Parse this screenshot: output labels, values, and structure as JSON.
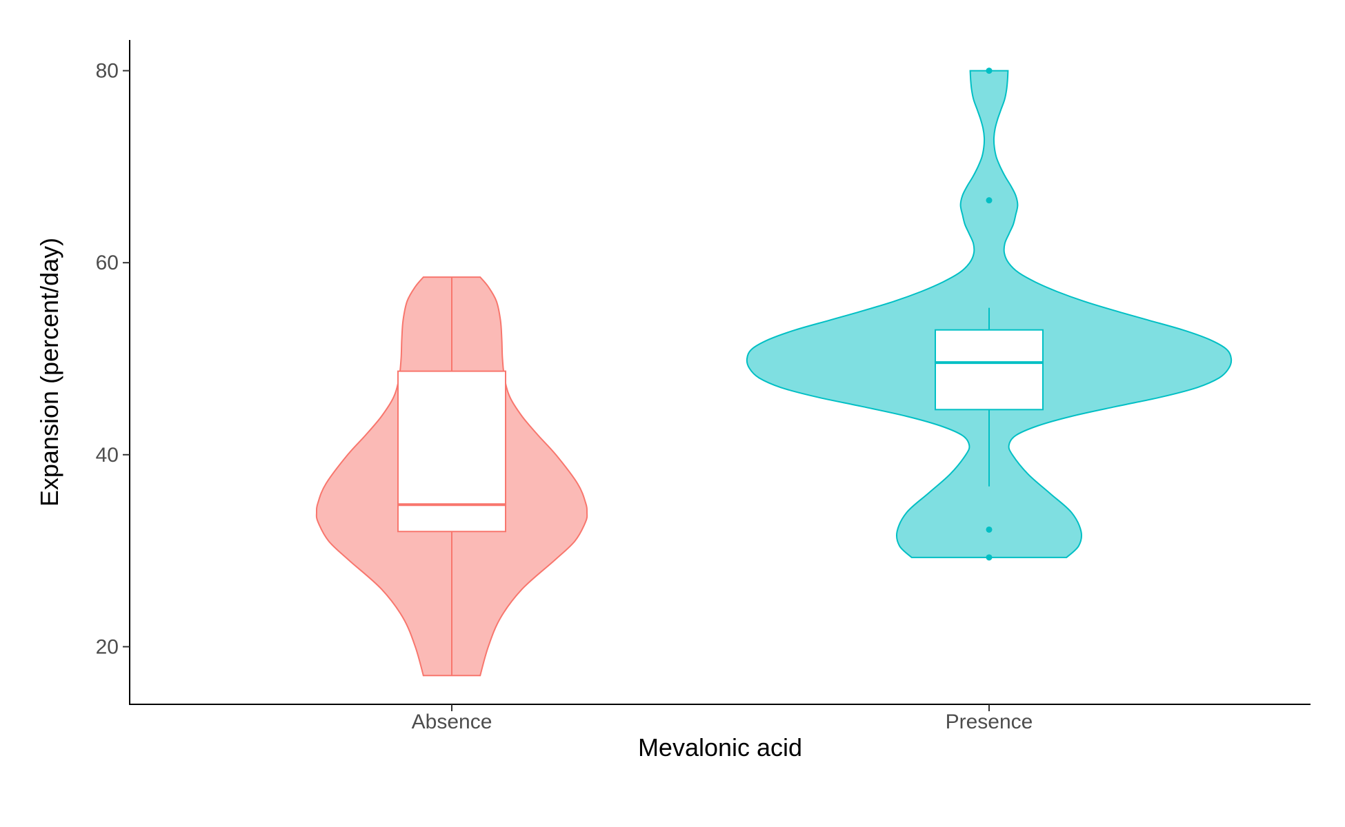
{
  "chart_data": {
    "type": "violin",
    "xlabel": "Mevalonic acid",
    "ylabel": "Expansion (percent/day)",
    "ylim": [
      14,
      83.2
    ],
    "yticks": [
      20,
      40,
      60,
      80
    ],
    "grid": false,
    "legend": "none",
    "categories": [
      "Absence",
      "Presence"
    ],
    "groups": [
      {
        "category": "Absence",
        "fill": "#F8766D",
        "stroke": "#F8766D",
        "min": 17.0,
        "max": 58.5,
        "box": {
          "q1": 32.0,
          "median": 34.8,
          "q3": 48.7,
          "whisker_low": 17.0,
          "whisker_high": 58.5
        },
        "outliers": [],
        "density": [
          [
            17.0,
            0.21
          ],
          [
            20,
            0.27
          ],
          [
            23,
            0.36
          ],
          [
            26,
            0.52
          ],
          [
            29,
            0.76
          ],
          [
            31,
            0.91
          ],
          [
            33,
            0.99
          ],
          [
            34,
            1.0
          ],
          [
            35,
            0.99
          ],
          [
            37,
            0.93
          ],
          [
            40,
            0.77
          ],
          [
            42,
            0.64
          ],
          [
            44,
            0.52
          ],
          [
            46,
            0.43
          ],
          [
            48,
            0.39
          ],
          [
            50,
            0.375
          ],
          [
            52,
            0.37
          ],
          [
            54,
            0.36
          ],
          [
            56,
            0.33
          ],
          [
            57.5,
            0.27
          ],
          [
            58.5,
            0.21
          ]
        ]
      },
      {
        "category": "Presence",
        "fill": "#00BFC4",
        "stroke": "#00BFC4",
        "min": 29.3,
        "max": 80.0,
        "box": {
          "q1": 44.7,
          "median": 49.6,
          "q3": 53.0,
          "whisker_low": 36.7,
          "whisker_high": 55.3
        },
        "outliers": [
          29.3,
          32.2,
          66.5,
          80.0
        ],
        "density": [
          [
            29.3,
            0.32
          ],
          [
            30.5,
            0.37
          ],
          [
            32,
            0.38
          ],
          [
            34,
            0.34
          ],
          [
            36,
            0.25
          ],
          [
            38,
            0.16
          ],
          [
            40,
            0.096
          ],
          [
            41,
            0.082
          ],
          [
            42,
            0.11
          ],
          [
            43,
            0.2
          ],
          [
            44,
            0.34
          ],
          [
            45,
            0.52
          ],
          [
            46,
            0.71
          ],
          [
            47,
            0.86
          ],
          [
            48,
            0.95
          ],
          [
            49,
            0.99
          ],
          [
            50,
            1.0
          ],
          [
            51,
            0.98
          ],
          [
            52,
            0.91
          ],
          [
            53,
            0.8
          ],
          [
            54,
            0.66
          ],
          [
            55,
            0.52
          ],
          [
            56,
            0.39
          ],
          [
            57,
            0.28
          ],
          [
            58,
            0.19
          ],
          [
            59,
            0.12
          ],
          [
            60,
            0.08
          ],
          [
            61,
            0.063
          ],
          [
            62,
            0.065
          ],
          [
            63,
            0.082
          ],
          [
            64,
            0.1
          ],
          [
            65,
            0.11
          ],
          [
            66,
            0.118
          ],
          [
            67,
            0.11
          ],
          [
            68,
            0.09
          ],
          [
            69,
            0.066
          ],
          [
            70,
            0.046
          ],
          [
            71,
            0.03
          ],
          [
            72,
            0.022
          ],
          [
            73,
            0.02
          ],
          [
            74,
            0.025
          ],
          [
            75,
            0.036
          ],
          [
            76,
            0.05
          ],
          [
            77,
            0.064
          ],
          [
            78,
            0.072
          ],
          [
            79,
            0.076
          ],
          [
            80,
            0.078
          ]
        ]
      }
    ]
  }
}
